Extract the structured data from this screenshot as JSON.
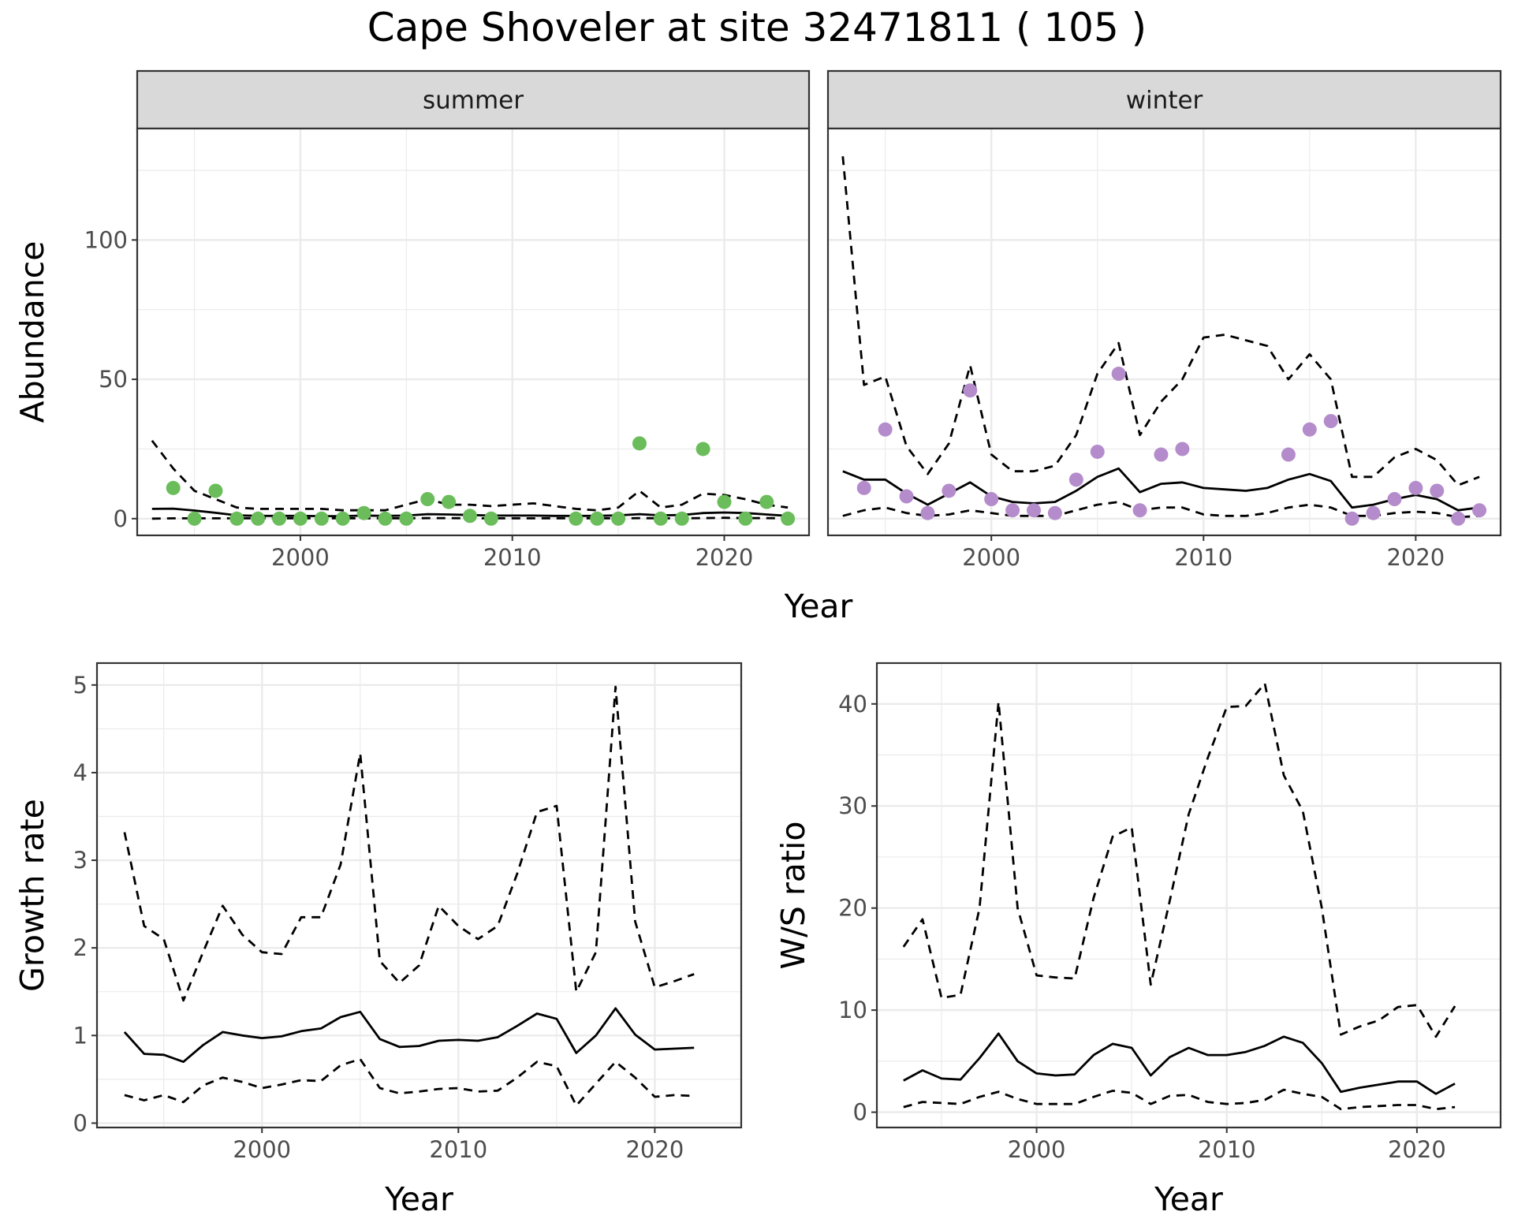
{
  "title": "Cape Shoveler at site 32471811 ( 105 )",
  "colors": {
    "summer_points": "#6ABD5A",
    "winter_points": "#B58CCB",
    "line": "#000000",
    "strip_fill": "#D9D9D9",
    "grid": "#EBEBEB",
    "tick_text": "#4D4D4D"
  },
  "chart_data": [
    {
      "type": "scatter",
      "title": "",
      "facets": [
        "summer",
        "winter"
      ],
      "xlabel": "Year",
      "ylabel": "Abundance",
      "xlim": [
        1992.3,
        2024.0
      ],
      "ylim": [
        -6,
        140
      ],
      "xticks": [
        2000,
        2010,
        2020
      ],
      "yticks": [
        0,
        50,
        100
      ],
      "panels": [
        {
          "facet": "summer",
          "point_color": "#6ABD5A",
          "points": {
            "x": [
              1994,
              1995,
              1996,
              1997,
              1998,
              1999,
              2000,
              2001,
              2002,
              2003,
              2004,
              2005,
              2006,
              2007,
              2008,
              2009,
              2013,
              2014,
              2015,
              2016,
              2017,
              2018,
              2019,
              2020,
              2021,
              2022,
              2023
            ],
            "y": [
              11,
              0,
              10,
              0,
              0,
              0,
              0,
              0,
              0,
              2,
              0,
              0,
              7,
              6,
              1,
              0,
              0,
              0,
              0,
              27,
              0,
              0,
              25,
              6,
              0,
              6,
              0
            ]
          },
          "series": [
            {
              "name": "mean",
              "style": "solid",
              "x": [
                1993,
                1994,
                1995,
                1996,
                1997,
                1998,
                1999,
                2000,
                2001,
                2002,
                2003,
                2004,
                2005,
                2006,
                2007,
                2008,
                2009,
                2010,
                2011,
                2012,
                2013,
                2014,
                2015,
                2016,
                2017,
                2018,
                2019,
                2020,
                2021,
                2022,
                2023
              ],
              "y": [
                3.5,
                3.6,
                2.9,
                2.1,
                1.2,
                1.0,
                1.0,
                1.0,
                0.9,
                0.9,
                1.1,
                1.0,
                1.1,
                1.6,
                1.5,
                1.3,
                1.1,
                1.1,
                1.1,
                1.0,
                1.0,
                1.0,
                1.2,
                1.6,
                1.2,
                1.3,
                2.0,
                2.2,
                2.0,
                1.5,
                1.0
              ]
            },
            {
              "name": "upper",
              "style": "dashed",
              "x": [
                1993,
                1994,
                1995,
                1996,
                1997,
                1998,
                1999,
                2000,
                2001,
                2002,
                2003,
                2004,
                2005,
                2006,
                2007,
                2008,
                2009,
                2010,
                2011,
                2012,
                2013,
                2014,
                2015,
                2016,
                2017,
                2018,
                2019,
                2020,
                2021,
                2022,
                2023
              ],
              "y": [
                28,
                18,
                10,
                7,
                4,
                3.5,
                3.5,
                3.5,
                3.5,
                3,
                3,
                3,
                5,
                7,
                5,
                5,
                4.5,
                5,
                5.5,
                4.5,
                3.5,
                3,
                4,
                10,
                4,
                5,
                9,
                8.5,
                7,
                5,
                4
              ]
            },
            {
              "name": "lower",
              "style": "dashed",
              "x": [
                1993,
                1994,
                1995,
                1996,
                1997,
                1998,
                1999,
                2000,
                2001,
                2002,
                2003,
                2004,
                2005,
                2006,
                2007,
                2008,
                2009,
                2010,
                2011,
                2012,
                2013,
                2014,
                2015,
                2016,
                2017,
                2018,
                2019,
                2020,
                2021,
                2022,
                2023
              ],
              "y": [
                0,
                0.1,
                0.1,
                0.1,
                0.1,
                0.1,
                0.1,
                0.1,
                0.1,
                0.1,
                0.1,
                0.1,
                0.1,
                0.2,
                0.2,
                0.1,
                0.1,
                0.1,
                0.1,
                0.1,
                0.1,
                0.1,
                0.1,
                0.2,
                0.1,
                0.1,
                0.2,
                0.3,
                0.2,
                0.2,
                0.1
              ]
            }
          ]
        },
        {
          "facet": "winter",
          "point_color": "#B58CCB",
          "points": {
            "x": [
              1994,
              1995,
              1996,
              1997,
              1998,
              1999,
              2000,
              2001,
              2002,
              2003,
              2004,
              2005,
              2006,
              2007,
              2008,
              2009,
              2014,
              2015,
              2016,
              2017,
              2018,
              2019,
              2020,
              2021,
              2022,
              2023
            ],
            "y": [
              11,
              32,
              8,
              2,
              10,
              46,
              7,
              3,
              3,
              2,
              14,
              24,
              52,
              3,
              23,
              25,
              23,
              32,
              35,
              0,
              2,
              7,
              11,
              10,
              0,
              3
            ]
          },
          "series": [
            {
              "name": "mean",
              "style": "solid",
              "x": [
                1993,
                1994,
                1995,
                1996,
                1997,
                1998,
                1999,
                2000,
                2001,
                2002,
                2003,
                2004,
                2005,
                2006,
                2007,
                2008,
                2009,
                2010,
                2011,
                2012,
                2013,
                2014,
                2015,
                2016,
                2017,
                2018,
                2019,
                2020,
                2021,
                2022,
                2023
              ],
              "y": [
                17,
                14,
                14,
                9,
                5,
                9,
                13,
                8,
                6,
                5.5,
                6,
                10,
                15,
                18,
                9.5,
                12.5,
                13,
                11,
                10.5,
                10,
                11,
                14,
                16,
                13.5,
                4,
                5,
                7,
                8.5,
                7,
                3,
                4
              ]
            },
            {
              "name": "upper",
              "style": "dashed",
              "x": [
                1993,
                1994,
                1995,
                1996,
                1997,
                1998,
                1999,
                2000,
                2001,
                2002,
                2003,
                2004,
                2005,
                2006,
                2007,
                2008,
                2009,
                2010,
                2011,
                2012,
                2013,
                2014,
                2015,
                2016,
                2017,
                2018,
                2019,
                2020,
                2021,
                2022,
                2023
              ],
              "y": [
                130,
                48,
                51,
                26,
                16,
                27,
                55,
                23,
                17,
                17,
                19,
                30,
                52,
                63,
                30,
                42,
                50,
                65,
                66,
                64,
                62,
                50,
                59,
                50,
                15,
                15,
                22,
                25,
                21,
                12,
                15
              ]
            },
            {
              "name": "lower",
              "style": "dashed",
              "x": [
                1993,
                1994,
                1995,
                1996,
                1997,
                1998,
                1999,
                2000,
                2001,
                2002,
                2003,
                2004,
                2005,
                2006,
                2007,
                2008,
                2009,
                2010,
                2011,
                2012,
                2013,
                2014,
                2015,
                2016,
                2017,
                2018,
                2019,
                2020,
                2021,
                2022,
                2023
              ],
              "y": [
                1,
                3,
                4,
                2,
                1,
                1.5,
                3,
                2,
                1,
                1,
                1,
                3,
                5,
                6,
                3,
                4,
                4,
                1.5,
                1,
                1,
                2,
                4,
                5,
                4,
                1,
                1,
                2,
                2.5,
                2,
                0.5,
                1
              ]
            }
          ]
        }
      ]
    },
    {
      "type": "line",
      "title": "",
      "xlabel": "Year",
      "ylabel": "Growth rate",
      "xlim": [
        1991.6,
        2024.4
      ],
      "ylim": [
        -0.05,
        5.25
      ],
      "xticks": [
        2000,
        2010,
        2020
      ],
      "yticks": [
        0,
        1,
        2,
        3,
        4,
        5
      ],
      "series": [
        {
          "name": "mean",
          "style": "solid",
          "x": [
            1993,
            1994,
            1995,
            1996,
            1997,
            1998,
            1999,
            2000,
            2001,
            2002,
            2003,
            2004,
            2005,
            2006,
            2007,
            2008,
            2009,
            2010,
            2011,
            2012,
            2013,
            2014,
            2015,
            2016,
            2017,
            2018,
            2019,
            2020,
            2021,
            2022
          ],
          "y": [
            1.04,
            0.79,
            0.78,
            0.7,
            0.89,
            1.04,
            1.0,
            0.97,
            0.99,
            1.05,
            1.08,
            1.21,
            1.27,
            0.96,
            0.87,
            0.88,
            0.94,
            0.95,
            0.94,
            0.98,
            1.11,
            1.25,
            1.19,
            0.8,
            1.0,
            1.31,
            1.01,
            0.84,
            0.85,
            0.86
          ]
        },
        {
          "name": "upper",
          "style": "dashed",
          "x": [
            1993,
            1994,
            1995,
            1996,
            1997,
            1998,
            1999,
            2000,
            2001,
            2002,
            2003,
            2004,
            2005,
            2006,
            2007,
            2008,
            2009,
            2010,
            2011,
            2012,
            2013,
            2014,
            2015,
            2016,
            2017,
            2018,
            2019,
            2020,
            2021,
            2022
          ],
          "y": [
            3.32,
            2.25,
            2.1,
            1.4,
            1.95,
            2.48,
            2.15,
            1.95,
            1.93,
            2.35,
            2.35,
            2.95,
            4.22,
            1.85,
            1.6,
            1.8,
            2.48,
            2.25,
            2.1,
            2.25,
            2.85,
            3.55,
            3.62,
            1.5,
            1.95,
            4.98,
            2.3,
            1.55,
            1.62,
            1.7
          ]
        },
        {
          "name": "lower",
          "style": "dashed",
          "x": [
            1993,
            1994,
            1995,
            1996,
            1997,
            1998,
            1999,
            2000,
            2001,
            2002,
            2003,
            2004,
            2005,
            2006,
            2007,
            2008,
            2009,
            2010,
            2011,
            2012,
            2013,
            2014,
            2015,
            2016,
            2017,
            2018,
            2019,
            2020,
            2021,
            2022
          ],
          "y": [
            0.32,
            0.26,
            0.32,
            0.24,
            0.43,
            0.52,
            0.47,
            0.4,
            0.44,
            0.49,
            0.48,
            0.66,
            0.73,
            0.4,
            0.34,
            0.36,
            0.39,
            0.4,
            0.36,
            0.37,
            0.52,
            0.7,
            0.65,
            0.2,
            0.45,
            0.7,
            0.52,
            0.3,
            0.32,
            0.31
          ]
        }
      ]
    },
    {
      "type": "line",
      "title": "",
      "xlabel": "Year",
      "ylabel": "W/S ratio",
      "xlim": [
        1991.6,
        2024.4
      ],
      "ylim": [
        -1.5,
        44
      ],
      "xticks": [
        2000,
        2010,
        2020
      ],
      "yticks": [
        0,
        10,
        20,
        30,
        40
      ],
      "series": [
        {
          "name": "mean",
          "style": "solid",
          "x": [
            1993,
            1994,
            1995,
            1996,
            1997,
            1998,
            1999,
            2000,
            2001,
            2002,
            2003,
            2004,
            2005,
            2006,
            2007,
            2008,
            2009,
            2010,
            2011,
            2012,
            2013,
            2014,
            2015,
            2016,
            2017,
            2018,
            2019,
            2020,
            2021,
            2022
          ],
          "y": [
            3.1,
            4.1,
            3.3,
            3.2,
            5.3,
            7.7,
            5.0,
            3.8,
            3.6,
            3.7,
            5.6,
            6.7,
            6.3,
            3.6,
            5.4,
            6.3,
            5.6,
            5.6,
            5.9,
            6.5,
            7.4,
            6.8,
            4.8,
            2.0,
            2.4,
            2.7,
            3.0,
            3.0,
            1.8,
            2.8
          ]
        },
        {
          "name": "upper",
          "style": "dashed",
          "x": [
            1993,
            1994,
            1995,
            1996,
            1997,
            1998,
            1999,
            2000,
            2001,
            2002,
            2003,
            2004,
            2005,
            2006,
            2007,
            2008,
            2009,
            2010,
            2011,
            2012,
            2013,
            2014,
            2015,
            2016,
            2017,
            2018,
            2019,
            2020,
            2021,
            2022
          ],
          "y": [
            16.2,
            18.9,
            11.2,
            11.5,
            20.0,
            40.2,
            20.0,
            13.4,
            13.2,
            13.1,
            21.0,
            27.0,
            27.9,
            12.5,
            20.7,
            29.2,
            34.7,
            39.7,
            39.8,
            42.0,
            33.0,
            29.5,
            20.0,
            7.6,
            8.4,
            9.0,
            10.3,
            10.5,
            7.4,
            10.4
          ]
        },
        {
          "name": "lower",
          "style": "dashed",
          "x": [
            1993,
            1994,
            1995,
            1996,
            1997,
            1998,
            1999,
            2000,
            2001,
            2002,
            2003,
            2004,
            2005,
            2006,
            2007,
            2008,
            2009,
            2010,
            2011,
            2012,
            2013,
            2014,
            2015,
            2016,
            2017,
            2018,
            2019,
            2020,
            2021,
            2022
          ],
          "y": [
            0.5,
            1.0,
            0.9,
            0.8,
            1.5,
            2.0,
            1.3,
            0.8,
            0.8,
            0.8,
            1.5,
            2.1,
            1.9,
            0.8,
            1.6,
            1.7,
            1.0,
            0.8,
            0.9,
            1.2,
            2.2,
            1.8,
            1.5,
            0.3,
            0.5,
            0.6,
            0.7,
            0.7,
            0.3,
            0.5
          ]
        }
      ]
    }
  ]
}
